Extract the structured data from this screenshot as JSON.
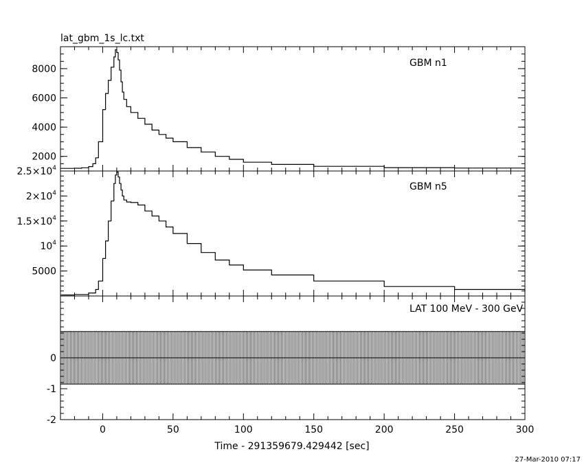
{
  "file_title": "lat_gbm_1s_lc.txt",
  "timestamp": "27-Mar-2010 07:17",
  "chart_data": [
    {
      "type": "line",
      "panel": "top",
      "annotation": "GBM n1",
      "xlabel": "",
      "ylabel": "",
      "xlim": [
        -30,
        300
      ],
      "ylim": [
        1000,
        9500
      ],
      "yticks": [
        "2000",
        "4000",
        "6000",
        "8000"
      ],
      "series": [
        {
          "x": [
            -30,
            -20,
            -15,
            -10,
            -7,
            -5,
            -3,
            0,
            2,
            4,
            6,
            8,
            9,
            10,
            11,
            12,
            13,
            14,
            15,
            17,
            20,
            25,
            30,
            35,
            40,
            45,
            50,
            60,
            70,
            80,
            90,
            100,
            120,
            150,
            200,
            250,
            300
          ],
          "y": [
            1180,
            1190,
            1220,
            1300,
            1500,
            1900,
            3000,
            5200,
            6300,
            7200,
            8100,
            8800,
            9300,
            9100,
            8600,
            7900,
            7100,
            6400,
            5900,
            5400,
            5000,
            4600,
            4200,
            3800,
            3500,
            3250,
            3000,
            2600,
            2300,
            2000,
            1800,
            1600,
            1450,
            1320,
            1230,
            1200,
            1180
          ]
        }
      ]
    },
    {
      "type": "line",
      "panel": "middle",
      "annotation": "GBM n5",
      "xlabel": "",
      "ylabel": "",
      "xlim": [
        -30,
        300
      ],
      "ylim": [
        0,
        25000
      ],
      "yticks": [
        "5000",
        "10^4",
        "1.5×10^4",
        "2×10^4",
        "2.5×10^4"
      ],
      "series": [
        {
          "x": [
            -30,
            -20,
            -10,
            -5,
            -3,
            0,
            2,
            4,
            6,
            8,
            9,
            10,
            11,
            12,
            13,
            14,
            15,
            17,
            20,
            25,
            30,
            35,
            40,
            45,
            50,
            60,
            70,
            80,
            90,
            100,
            120,
            150,
            200,
            250,
            300
          ],
          "y": [
            200,
            300,
            600,
            1300,
            3000,
            7500,
            11000,
            15000,
            19000,
            22500,
            24200,
            24800,
            23800,
            22500,
            21200,
            20000,
            19200,
            18800,
            18700,
            18200,
            17000,
            16000,
            15000,
            13800,
            12500,
            10500,
            8700,
            7200,
            6200,
            5200,
            4200,
            3000,
            1900,
            1300,
            1000
          ]
        }
      ]
    },
    {
      "type": "bar",
      "panel": "bottom",
      "annotation": "LAT 100 MeV - 300 GeV",
      "xlabel": "Time - 291359679.429442 [sec]",
      "ylabel": "",
      "xlim": [
        -30,
        300
      ],
      "ylim": [
        -2,
        2
      ],
      "xticks": [
        "0",
        "50",
        "100",
        "150",
        "200",
        "250",
        "300"
      ],
      "yticks": [
        "0",
        "-1",
        "-2"
      ],
      "series": [
        {
          "x_start": -30,
          "x_step": 1,
          "count": 330,
          "value_low": -0.85,
          "value_high": 0.85,
          "zero_line": 0
        }
      ]
    }
  ]
}
